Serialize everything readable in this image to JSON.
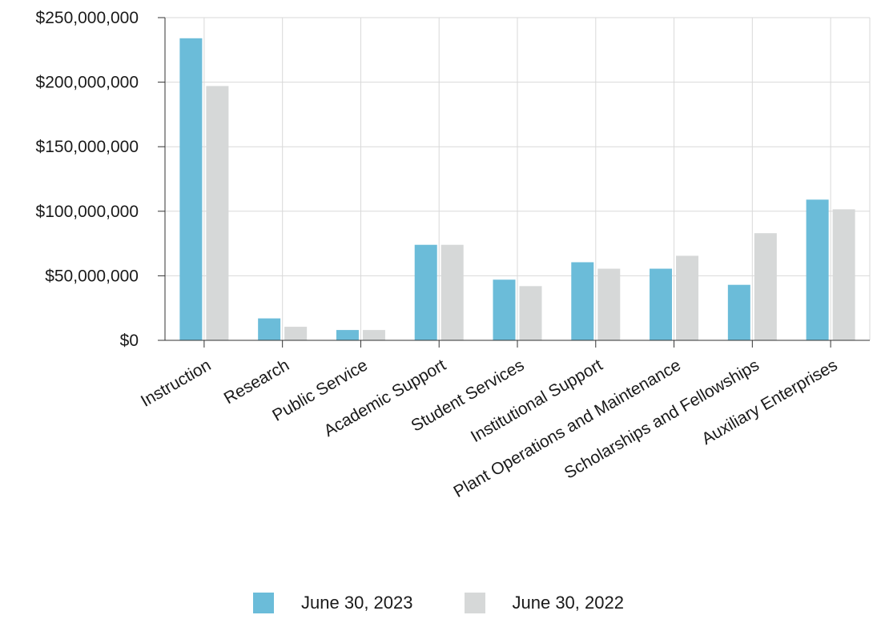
{
  "chart_data": {
    "type": "bar",
    "categories": [
      "Instruction",
      "Research",
      "Public Service",
      "Academic Support",
      "Student Services",
      "Institutional Support",
      "Plant Operations and Maintenance",
      "Scholarships and Fellowships",
      "Auxiliary Enterprises"
    ],
    "series": [
      {
        "name": "June 30, 2023",
        "color": "#6bbcd9",
        "values": [
          234000000,
          17000000,
          8000000,
          74000000,
          47000000,
          60500000,
          55500000,
          43000000,
          109000000
        ]
      },
      {
        "name": "June 30, 2022",
        "color": "#d6d8d8",
        "values": [
          197000000,
          10500000,
          8000000,
          74000000,
          42000000,
          55500000,
          65500000,
          83000000,
          101500000
        ]
      }
    ],
    "ylim": [
      0,
      250000000
    ],
    "yticks": [
      0,
      50000000,
      100000000,
      150000000,
      200000000,
      250000000
    ],
    "ytick_labels": [
      "$0",
      "$50,000,000",
      "$100,000,000",
      "$150,000,000",
      "$200,000,000",
      "$250,000,000"
    ],
    "grid": true,
    "legend_position": "bottom-center"
  }
}
